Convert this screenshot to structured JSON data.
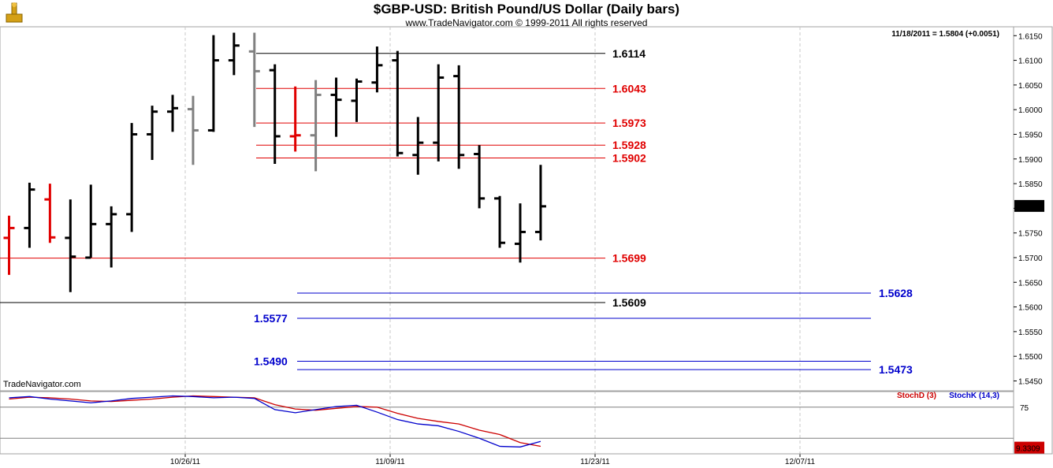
{
  "header": {
    "title": "$GBP-USD:  British Pound/US Dollar  (Daily bars)",
    "copyright": "www.TradeNavigator.com © 1999-2011 All rights reserved",
    "last_readout": "11/18/2011 = 1.5804 (+0.0051)",
    "watermark": "TradeNavigator.com"
  },
  "colors": {
    "up_bar": "#000000",
    "neutral_bar": "#808080",
    "signal_bar": "#e00000",
    "red_level": "#e00000",
    "black_level": "#000000",
    "blue_level": "#0000cc",
    "stoch_d": "#cc0000",
    "stoch_k": "#0000cc",
    "grid": "#c8c8c8"
  },
  "chart_data": [
    {
      "type": "ohlc",
      "title": "$GBP-USD:  British Pound/US Dollar  (Daily bars)",
      "ylim": [
        1.543,
        1.6168
      ],
      "yticks": [
        "1.6150",
        "1.6100",
        "1.6050",
        "1.6000",
        "1.5950",
        "1.5900",
        "1.5850",
        "1.5800",
        "1.5750",
        "1.5700",
        "1.5650",
        "1.5600",
        "1.5550",
        "1.5500",
        "1.5450"
      ],
      "xticks": [
        "10/26/11",
        "11/09/11",
        "11/23/11",
        "12/07/11"
      ],
      "last_price": "1.5804",
      "bars": [
        {
          "o": 1.574,
          "h": 1.5785,
          "l": 1.5665,
          "c": 1.576,
          "k": "r"
        },
        {
          "o": 1.576,
          "h": 1.5852,
          "l": 1.572,
          "c": 1.5838,
          "k": "b"
        },
        {
          "o": 1.5818,
          "h": 1.585,
          "l": 1.573,
          "c": 1.5741,
          "k": "r"
        },
        {
          "o": 1.574,
          "h": 1.5818,
          "l": 1.563,
          "c": 1.5702,
          "k": "b"
        },
        {
          "o": 1.57,
          "h": 1.5848,
          "l": 1.57,
          "c": 1.5768,
          "k": "b"
        },
        {
          "o": 1.5768,
          "h": 1.5804,
          "l": 1.568,
          "c": 1.5788,
          "k": "b"
        },
        {
          "o": 1.5788,
          "h": 1.5973,
          "l": 1.5752,
          "c": 1.595,
          "k": "b"
        },
        {
          "o": 1.595,
          "h": 1.6008,
          "l": 1.5898,
          "c": 1.5996,
          "k": "b"
        },
        {
          "o": 1.5996,
          "h": 1.603,
          "l": 1.5955,
          "c": 1.6003,
          "k": "b"
        },
        {
          "o": 1.6001,
          "h": 1.6028,
          "l": 1.5888,
          "c": 1.5958,
          "k": "g"
        },
        {
          "o": 1.5958,
          "h": 1.6151,
          "l": 1.5955,
          "c": 1.61,
          "k": "b"
        },
        {
          "o": 1.61,
          "h": 1.6156,
          "l": 1.607,
          "c": 1.613,
          "k": "b"
        },
        {
          "o": 1.6118,
          "h": 1.6156,
          "l": 1.5965,
          "c": 1.6078,
          "k": "g"
        },
        {
          "o": 1.608,
          "h": 1.6092,
          "l": 1.589,
          "c": 1.5946,
          "k": "b"
        },
        {
          "o": 1.5946,
          "h": 1.6047,
          "l": 1.5915,
          "c": 1.5948,
          "k": "r"
        },
        {
          "o": 1.5948,
          "h": 1.606,
          "l": 1.5875,
          "c": 1.603,
          "k": "g"
        },
        {
          "o": 1.603,
          "h": 1.6065,
          "l": 1.5945,
          "c": 1.602,
          "k": "b"
        },
        {
          "o": 1.6018,
          "h": 1.6063,
          "l": 1.5975,
          "c": 1.6057,
          "k": "b"
        },
        {
          "o": 1.6055,
          "h": 1.6128,
          "l": 1.6035,
          "c": 1.609,
          "k": "b"
        },
        {
          "o": 1.61,
          "h": 1.6119,
          "l": 1.5905,
          "c": 1.5912,
          "k": "b"
        },
        {
          "o": 1.5908,
          "h": 1.5985,
          "l": 1.5868,
          "c": 1.5933,
          "k": "b"
        },
        {
          "o": 1.5933,
          "h": 1.6092,
          "l": 1.5895,
          "c": 1.6065,
          "k": "b"
        },
        {
          "o": 1.6068,
          "h": 1.609,
          "l": 1.588,
          "c": 1.5908,
          "k": "b"
        },
        {
          "o": 1.591,
          "h": 1.5928,
          "l": 1.58,
          "c": 1.582,
          "k": "b"
        },
        {
          "o": 1.582,
          "h": 1.5825,
          "l": 1.572,
          "c": 1.573,
          "k": "b"
        },
        {
          "o": 1.5728,
          "h": 1.581,
          "l": 1.569,
          "c": 1.5752,
          "k": "b"
        },
        {
          "o": 1.5752,
          "h": 1.5888,
          "l": 1.5735,
          "c": 1.5804,
          "k": "b"
        }
      ],
      "levels": [
        {
          "value": 1.6114,
          "label": "1.6114",
          "color": "black",
          "label_side": "mid",
          "from": "mid"
        },
        {
          "value": 1.6043,
          "label": "1.6043",
          "color": "red",
          "label_side": "mid",
          "from": "mid"
        },
        {
          "value": 1.5973,
          "label": "1.5973",
          "color": "red",
          "label_side": "mid",
          "from": "mid"
        },
        {
          "value": 1.5928,
          "label": "1.5928",
          "color": "red",
          "label_side": "mid",
          "from": "mid"
        },
        {
          "value": 1.5902,
          "label": "1.5902",
          "color": "red",
          "label_side": "mid",
          "from": "mid"
        },
        {
          "value": 1.5699,
          "label": "1.5699",
          "color": "red",
          "label_side": "mid",
          "from": "left"
        },
        {
          "value": 1.5609,
          "label": "1.5609",
          "color": "black",
          "label_side": "mid",
          "from": "left"
        },
        {
          "value": 1.5628,
          "label": "1.5628",
          "color": "blue",
          "label_side": "right",
          "from": "mid"
        },
        {
          "value": 1.5577,
          "label": "1.5577",
          "color": "blue",
          "label_side": "left",
          "from": "mid"
        },
        {
          "value": 1.549,
          "label": "1.5490",
          "color": "blue",
          "label_side": "left",
          "from": "mid"
        },
        {
          "value": 1.5473,
          "label": "1.5473",
          "color": "blue",
          "label_side": "right",
          "from": "mid"
        }
      ]
    },
    {
      "type": "line",
      "title": "StochD (3)   StochK (14,3)",
      "ylim": [
        0,
        100
      ],
      "yticks": [
        "75"
      ],
      "ref_lines": [
        75,
        25
      ],
      "last_value": "9.3309",
      "series": [
        {
          "name": "StochD (3)",
          "values": [
            88,
            91,
            90,
            88,
            85,
            84,
            86,
            88,
            91,
            93,
            92,
            91,
            90,
            79,
            72,
            70,
            73,
            76,
            75,
            65,
            57,
            52,
            48,
            38,
            31,
            18,
            12
          ]
        },
        {
          "name": "StochK (14,3)",
          "values": [
            90,
            92,
            88,
            85,
            82,
            85,
            89,
            91,
            93,
            92,
            90,
            91,
            89,
            71,
            66,
            71,
            76,
            78,
            67,
            55,
            48,
            45,
            36,
            25,
            12,
            11,
            20
          ]
        }
      ]
    }
  ]
}
